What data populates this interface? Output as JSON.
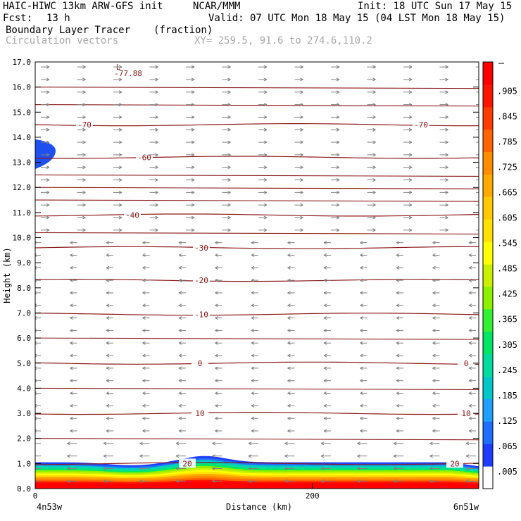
{
  "header": {
    "model": "HAIC-HIWC 13km ARW-GFS init",
    "org": "NCAR/MMM",
    "init": "Init: 18 UTC Sun 17 May 15",
    "fcst_label": "Fcst:",
    "fcst_value": "13 h",
    "valid": "Valid: 07 UTC Mon 18 May 15 (04 LST Mon 18 May 15)",
    "field": "Boundary Layer Tracer",
    "units": "(fraction)",
    "overlay": "Circulation vectors",
    "xy": "XY= 259.5, 91.6 to 274.6,110.2"
  },
  "chart_data": {
    "type": "heatmap",
    "ylabel": "Height (km)",
    "xlabel": "Distance (km)",
    "x_end_labels": [
      "4n53w",
      "6n51w"
    ],
    "xticks": [
      {
        "value": 0,
        "label": "0"
      },
      {
        "value": 200,
        "label": "200"
      }
    ],
    "xlim": [
      0,
      320
    ],
    "ylim": [
      0,
      17
    ],
    "yticks": [
      "0.0",
      "1.0",
      "2.0",
      "3.0",
      "4.0",
      "5.0",
      "6.0",
      "7.0",
      "8.0",
      "9.0",
      "10.0",
      "11.0",
      "12.0",
      "13.0",
      "14.0",
      "15.0",
      "16.0",
      "17.0"
    ],
    "colorbar_labels": [
      ".005",
      ".065",
      ".125",
      ".185",
      ".245",
      ".305",
      ".365",
      ".425",
      ".485",
      ".545",
      ".605",
      ".665",
      ".725",
      ".785",
      ".845",
      ".905"
    ],
    "colorbar_colors": [
      "#ffffff",
      "#1e3cff",
      "#1e6eff",
      "#1ea0ff",
      "#00c8c8",
      "#00dca0",
      "#00e664",
      "#32f032",
      "#8cf000",
      "#c8f000",
      "#ffff00",
      "#ffe100",
      "#ffc800",
      "#ffaa00",
      "#ff8c00",
      "#ff6400",
      "#ff3c00",
      "#ff1400",
      "#ff0000"
    ],
    "contour_lines": [
      {
        "label": "-70",
        "height_km": 14.5
      },
      {
        "label": "-60",
        "height_km": 13.2
      },
      {
        "label": "-40",
        "height_km": 10.9
      },
      {
        "label": "-30",
        "height_km": 9.6
      },
      {
        "label": "-20",
        "height_km": 8.3
      },
      {
        "label": "-10",
        "height_km": 6.95
      },
      {
        "label": "0",
        "height_km": 5.0
      },
      {
        "label": "10",
        "height_km": 3.0
      },
      {
        "label": "20",
        "height_km": 1.0
      }
    ],
    "extremum": {
      "symbol": "L",
      "value": "-77.88"
    },
    "vectors": "Circulation vectors"
  }
}
